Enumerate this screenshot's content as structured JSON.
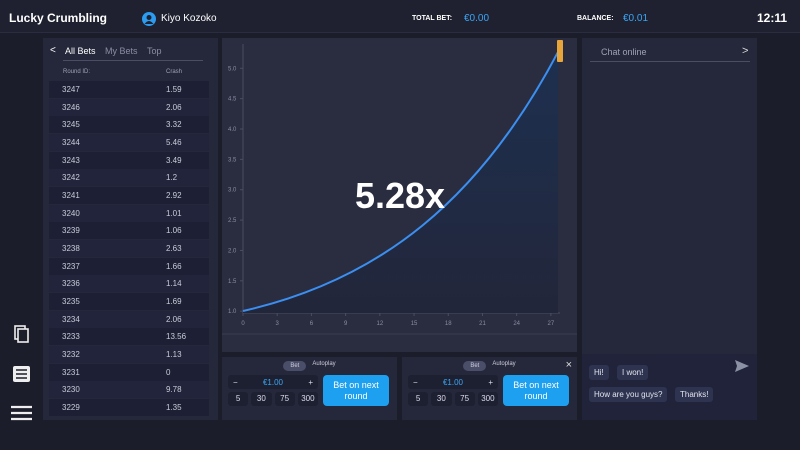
{
  "header": {
    "title": "Lucky Crumbling",
    "user": "Kiyo Kozoko",
    "total_bet_label": "TOTAL BET:",
    "total_bet": "€0.00",
    "balance_label": "BALANCE:",
    "balance": "€0.01",
    "time": "12:11"
  },
  "bets_panel": {
    "tabs": [
      "All Bets",
      "My Bets",
      "Top"
    ],
    "columns": [
      "Round ID:",
      "Crash"
    ],
    "rows": [
      [
        "3247",
        "1.59"
      ],
      [
        "3246",
        "2.06"
      ],
      [
        "3245",
        "3.32"
      ],
      [
        "3244",
        "5.46"
      ],
      [
        "3243",
        "3.49"
      ],
      [
        "3242",
        "1.2"
      ],
      [
        "3241",
        "2.92"
      ],
      [
        "3240",
        "1.01"
      ],
      [
        "3239",
        "1.06"
      ],
      [
        "3238",
        "2.63"
      ],
      [
        "3237",
        "1.66"
      ],
      [
        "3236",
        "1.14"
      ],
      [
        "3235",
        "1.69"
      ],
      [
        "3234",
        "2.06"
      ],
      [
        "3233",
        "13.56"
      ],
      [
        "3232",
        "1.13"
      ],
      [
        "3231",
        "0"
      ],
      [
        "3230",
        "9.78"
      ],
      [
        "3229",
        "1.35"
      ]
    ]
  },
  "game": {
    "multiplier": "5.28x",
    "xlim": [
      0,
      27.8
    ],
    "ylim": [
      0.97,
      5.4
    ],
    "xticks": [
      0,
      3,
      6,
      9,
      12,
      15,
      18,
      21,
      24,
      27
    ],
    "yticks": [
      {
        "value": 1,
        "label": "1.0"
      },
      {
        "value": 1.5,
        "label": "1.5"
      },
      {
        "value": 2,
        "label": "2.0"
      },
      {
        "value": 2.5,
        "label": "2.5"
      },
      {
        "value": 3,
        "label": "3.0"
      },
      {
        "value": 3.5,
        "label": "3.5"
      },
      {
        "value": 4,
        "label": "4.0"
      },
      {
        "value": 4.5,
        "label": "4.5"
      },
      {
        "value": 5,
        "label": "5.0"
      }
    ]
  },
  "bet_panels": [
    {
      "tabs": [
        "Bet",
        "Autoplay"
      ],
      "amount": "€1.00",
      "quick": [
        "5",
        "30",
        "75",
        "300"
      ],
      "button": "Bet on next round"
    },
    {
      "tabs": [
        "Bet",
        "Autoplay"
      ],
      "amount": "€1.00",
      "quick": [
        "5",
        "30",
        "75",
        "300"
      ],
      "button": "Bet on next round"
    }
  ],
  "chat": {
    "title": "Chat online",
    "messages": [
      "Hi!",
      "I won!",
      "How are you guys?",
      "Thanks!"
    ]
  }
}
